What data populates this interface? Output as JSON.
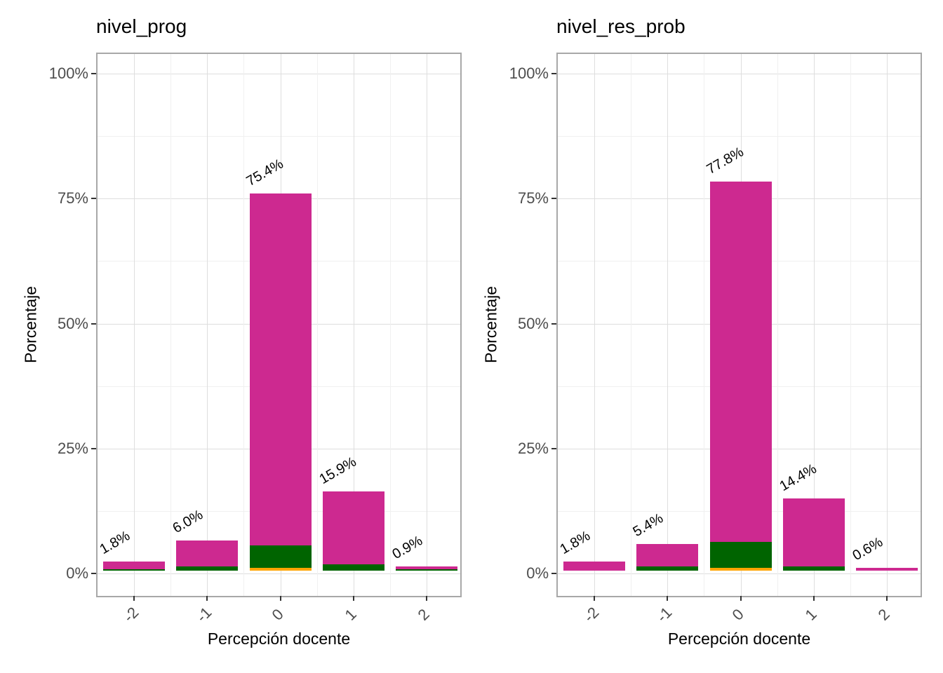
{
  "figure": {
    "description": "Two side-by-side stacked bar charts of teacher perception percentages",
    "background": "#ffffff"
  },
  "colors": {
    "magenta": "#cd2990",
    "green": "#006400",
    "orange": "#ffa500",
    "axis_text": "#4d4d4d",
    "title_text": "#000000",
    "grid_major": "#dedede",
    "grid_minor": "#f0f0f0",
    "panel_border": "#a8a8a8",
    "tick_mark": "#333333"
  },
  "chart_data": [
    {
      "type": "bar",
      "stacked": true,
      "title": "nivel_prog",
      "xlabel": "Percepción docente",
      "ylabel": "Porcentaje",
      "categories": [
        "-2",
        "-1",
        "0",
        "1",
        "2"
      ],
      "y_ticks": [
        "0%",
        "25%",
        "50%",
        "75%",
        "100%"
      ],
      "y_tick_values": [
        0,
        25,
        50,
        75,
        100
      ],
      "ylim": [
        0,
        100
      ],
      "grid": true,
      "legend_position": "none",
      "bar_labels": [
        "1.8%",
        "6.0%",
        "75.4%",
        "15.9%",
        "0.9%"
      ],
      "totals": [
        1.8,
        6.0,
        75.4,
        15.9,
        0.9
      ],
      "series": [
        {
          "name": "orange-segment",
          "color_key": "orange",
          "values": [
            0,
            0,
            0.5,
            0,
            0
          ]
        },
        {
          "name": "green-segment",
          "color_key": "green",
          "values": [
            0.3,
            0.9,
            4.6,
            1.2,
            0.3
          ]
        },
        {
          "name": "magenta-segment",
          "color_key": "magenta",
          "values": [
            1.5,
            5.1,
            70.3,
            14.7,
            0.6
          ]
        }
      ]
    },
    {
      "type": "bar",
      "stacked": true,
      "title": "nivel_res_prob",
      "xlabel": "Percepción docente",
      "ylabel": "Porcentaje",
      "categories": [
        "-2",
        "-1",
        "0",
        "1",
        "2"
      ],
      "y_ticks": [
        "0%",
        "25%",
        "50%",
        "75%",
        "100%"
      ],
      "y_tick_values": [
        0,
        25,
        50,
        75,
        100
      ],
      "ylim": [
        0,
        100
      ],
      "grid": true,
      "legend_position": "none",
      "bar_labels": [
        "1.8%",
        "5.4%",
        "77.8%",
        "14.4%",
        "0.6%"
      ],
      "totals": [
        1.8,
        5.4,
        77.8,
        14.4,
        0.6
      ],
      "series": [
        {
          "name": "orange-segment",
          "color_key": "orange",
          "values": [
            0,
            0,
            0.5,
            0,
            0
          ]
        },
        {
          "name": "green-segment",
          "color_key": "green",
          "values": [
            0,
            0.9,
            5.2,
            0.9,
            0
          ]
        },
        {
          "name": "magenta-segment",
          "color_key": "magenta",
          "values": [
            1.8,
            4.5,
            72.1,
            13.5,
            0.6
          ]
        }
      ]
    }
  ]
}
